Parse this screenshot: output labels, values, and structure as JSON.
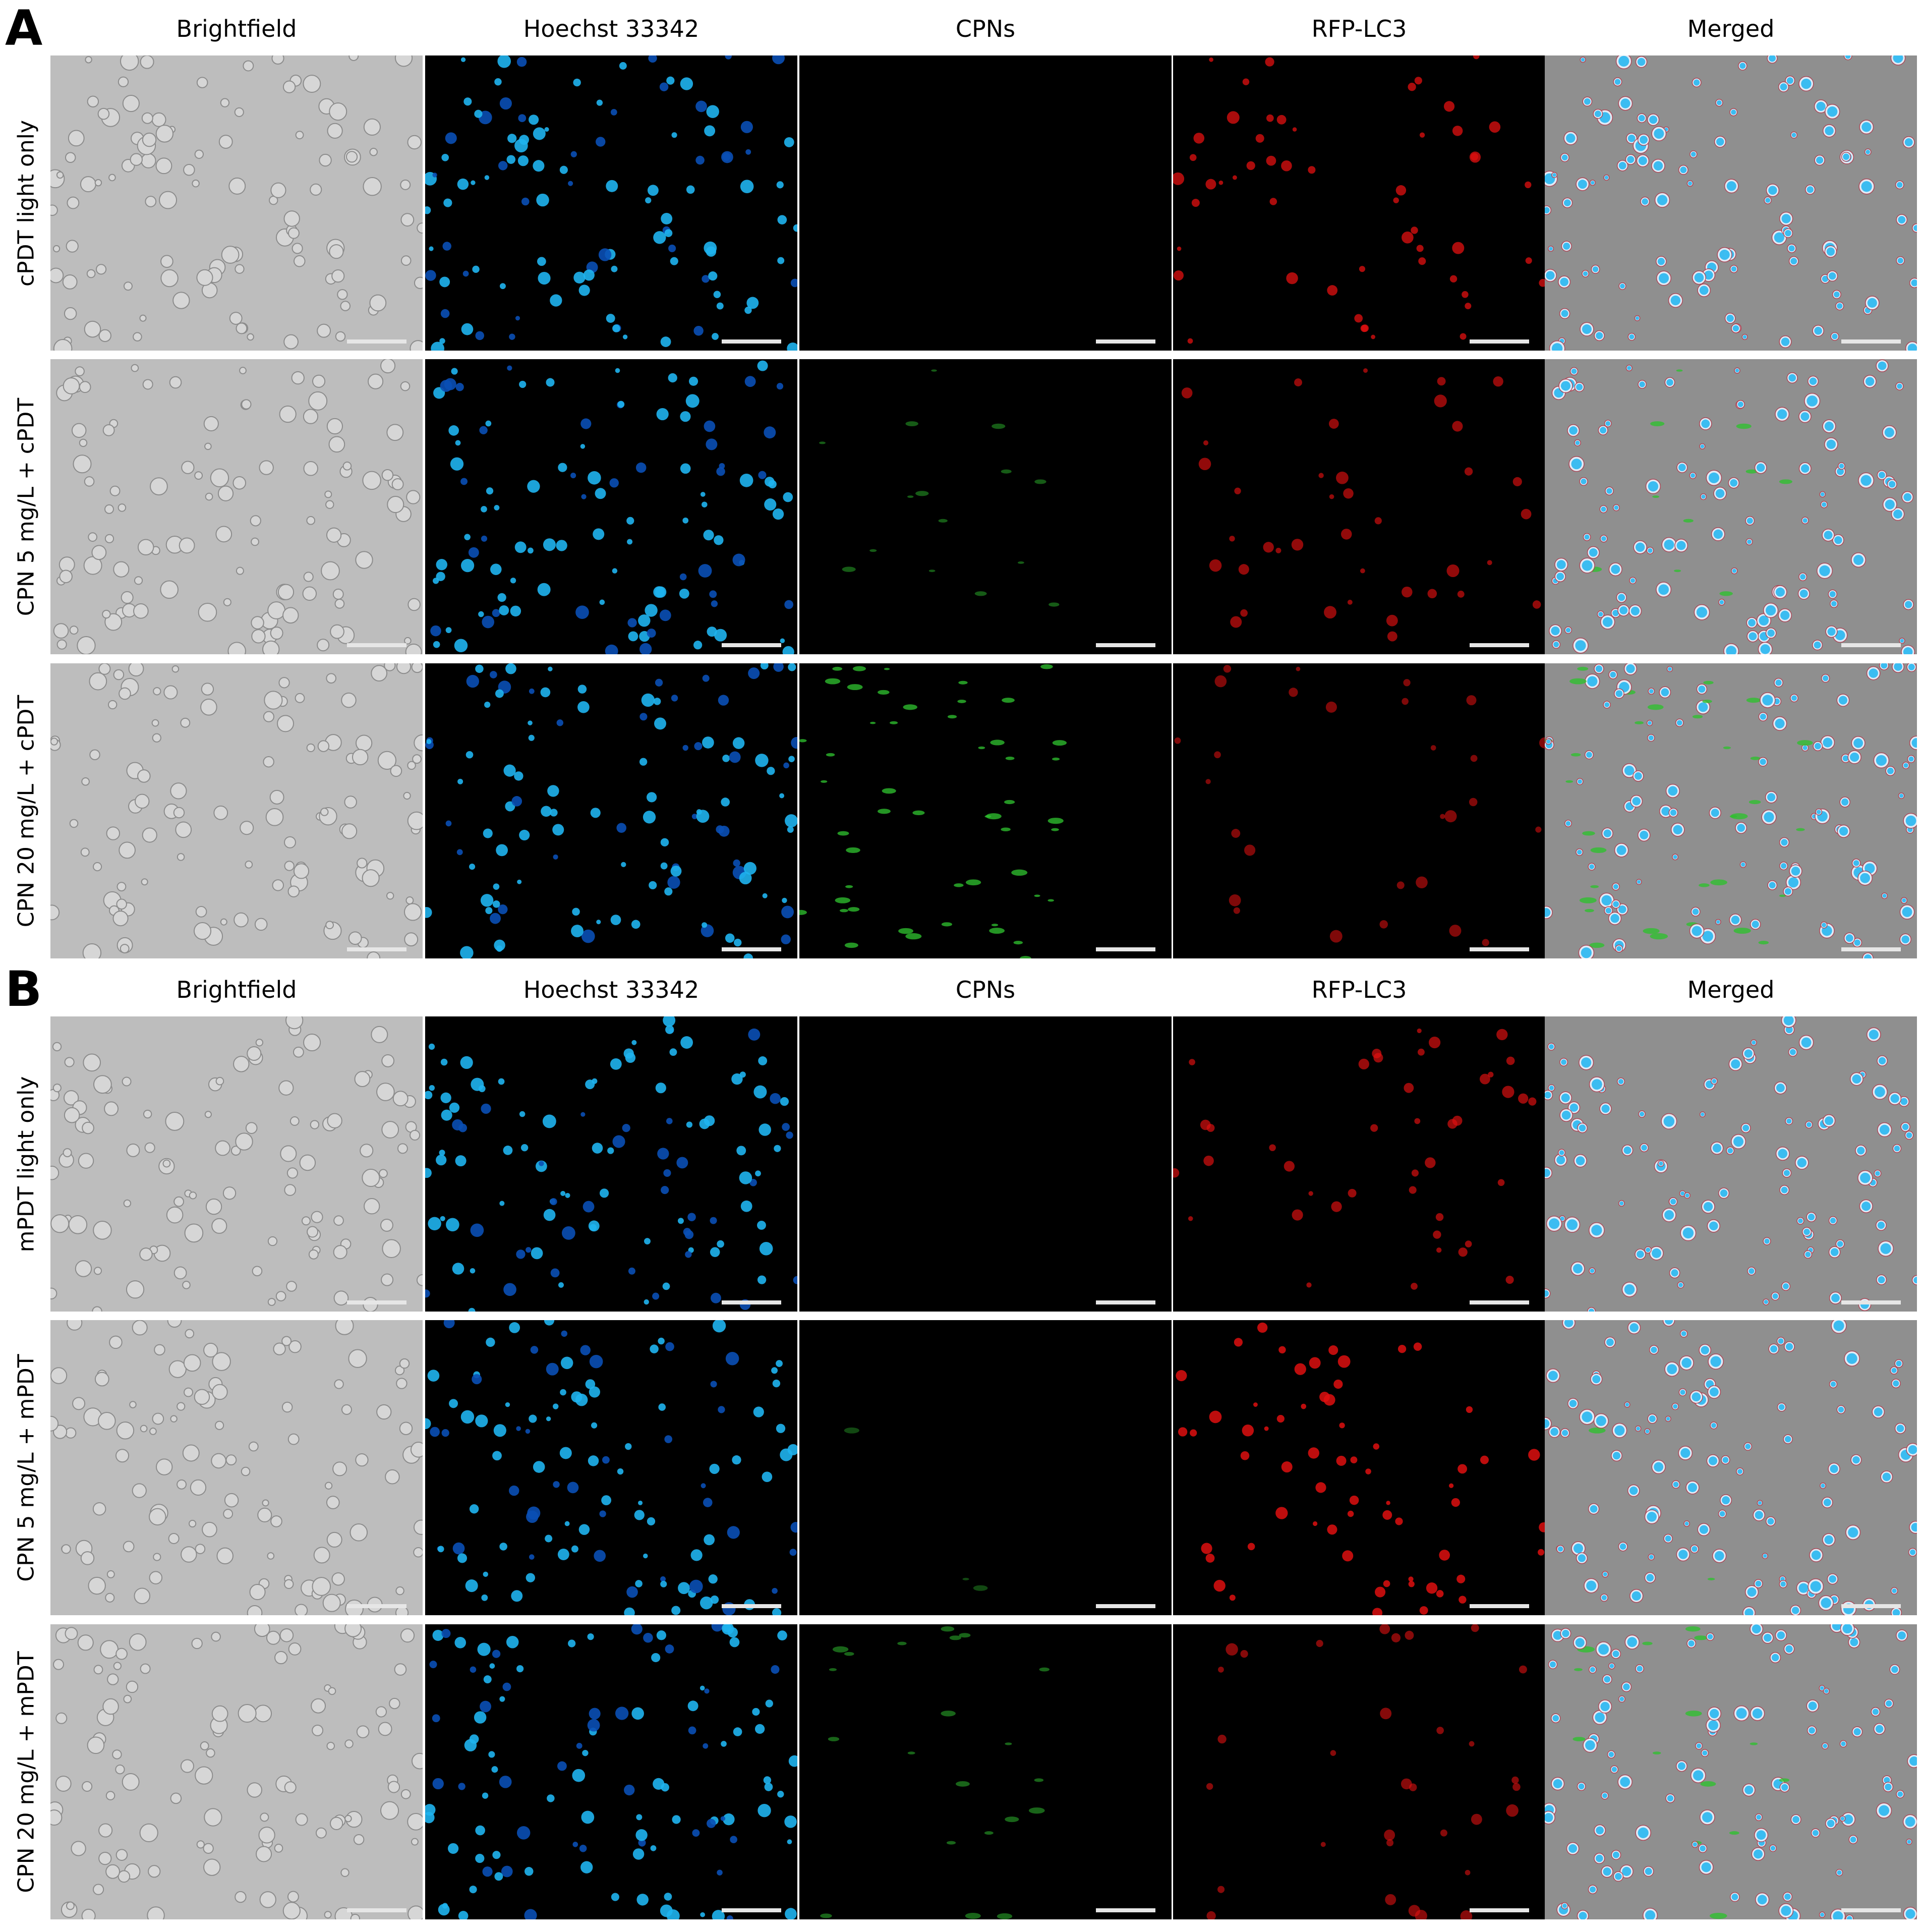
{
  "figure": {
    "panels": [
      {
        "letter": "A",
        "column_titles": [
          "Brightfield",
          "Hoechst 33342",
          "CPNs",
          "RFP-LC3",
          "Merged"
        ],
        "rows": [
          {
            "label": "cPDT light only",
            "green_level": 0.0,
            "red_level": 0.75
          },
          {
            "label": "CPN 5 mg/L + cPDT",
            "green_level": 0.25,
            "red_level": 0.55
          },
          {
            "label": "CPN 20 mg/L + cPDT",
            "green_level": 0.85,
            "red_level": 0.4
          }
        ]
      },
      {
        "letter": "B",
        "column_titles": [
          "Brightfield",
          "Hoechst 33342",
          "CPNs",
          "RFP-LC3",
          "Merged"
        ],
        "rows": [
          {
            "label": "mPDT light only",
            "green_level": 0.0,
            "red_level": 0.6
          },
          {
            "label": "CPN 5 mg/L + mPDT",
            "green_level": 0.05,
            "red_level": 0.9
          },
          {
            "label": "CPN 20 mg/L + mPDT",
            "green_level": 0.35,
            "red_level": 0.45
          }
        ]
      }
    ],
    "colors": {
      "brightfield_bg": "#bdbdbd",
      "brightfield_cell": "#8c8c8c",
      "nucleus": "#1fb4f0",
      "nucleus_dim": "#0a4fb5",
      "cpn_green": "#2fbf2f",
      "lc3_red": "#e01010",
      "merged_bg": "#8f8f8f",
      "scalebar": "#e6e6e6"
    },
    "icons": [
      "scale-bar"
    ]
  }
}
